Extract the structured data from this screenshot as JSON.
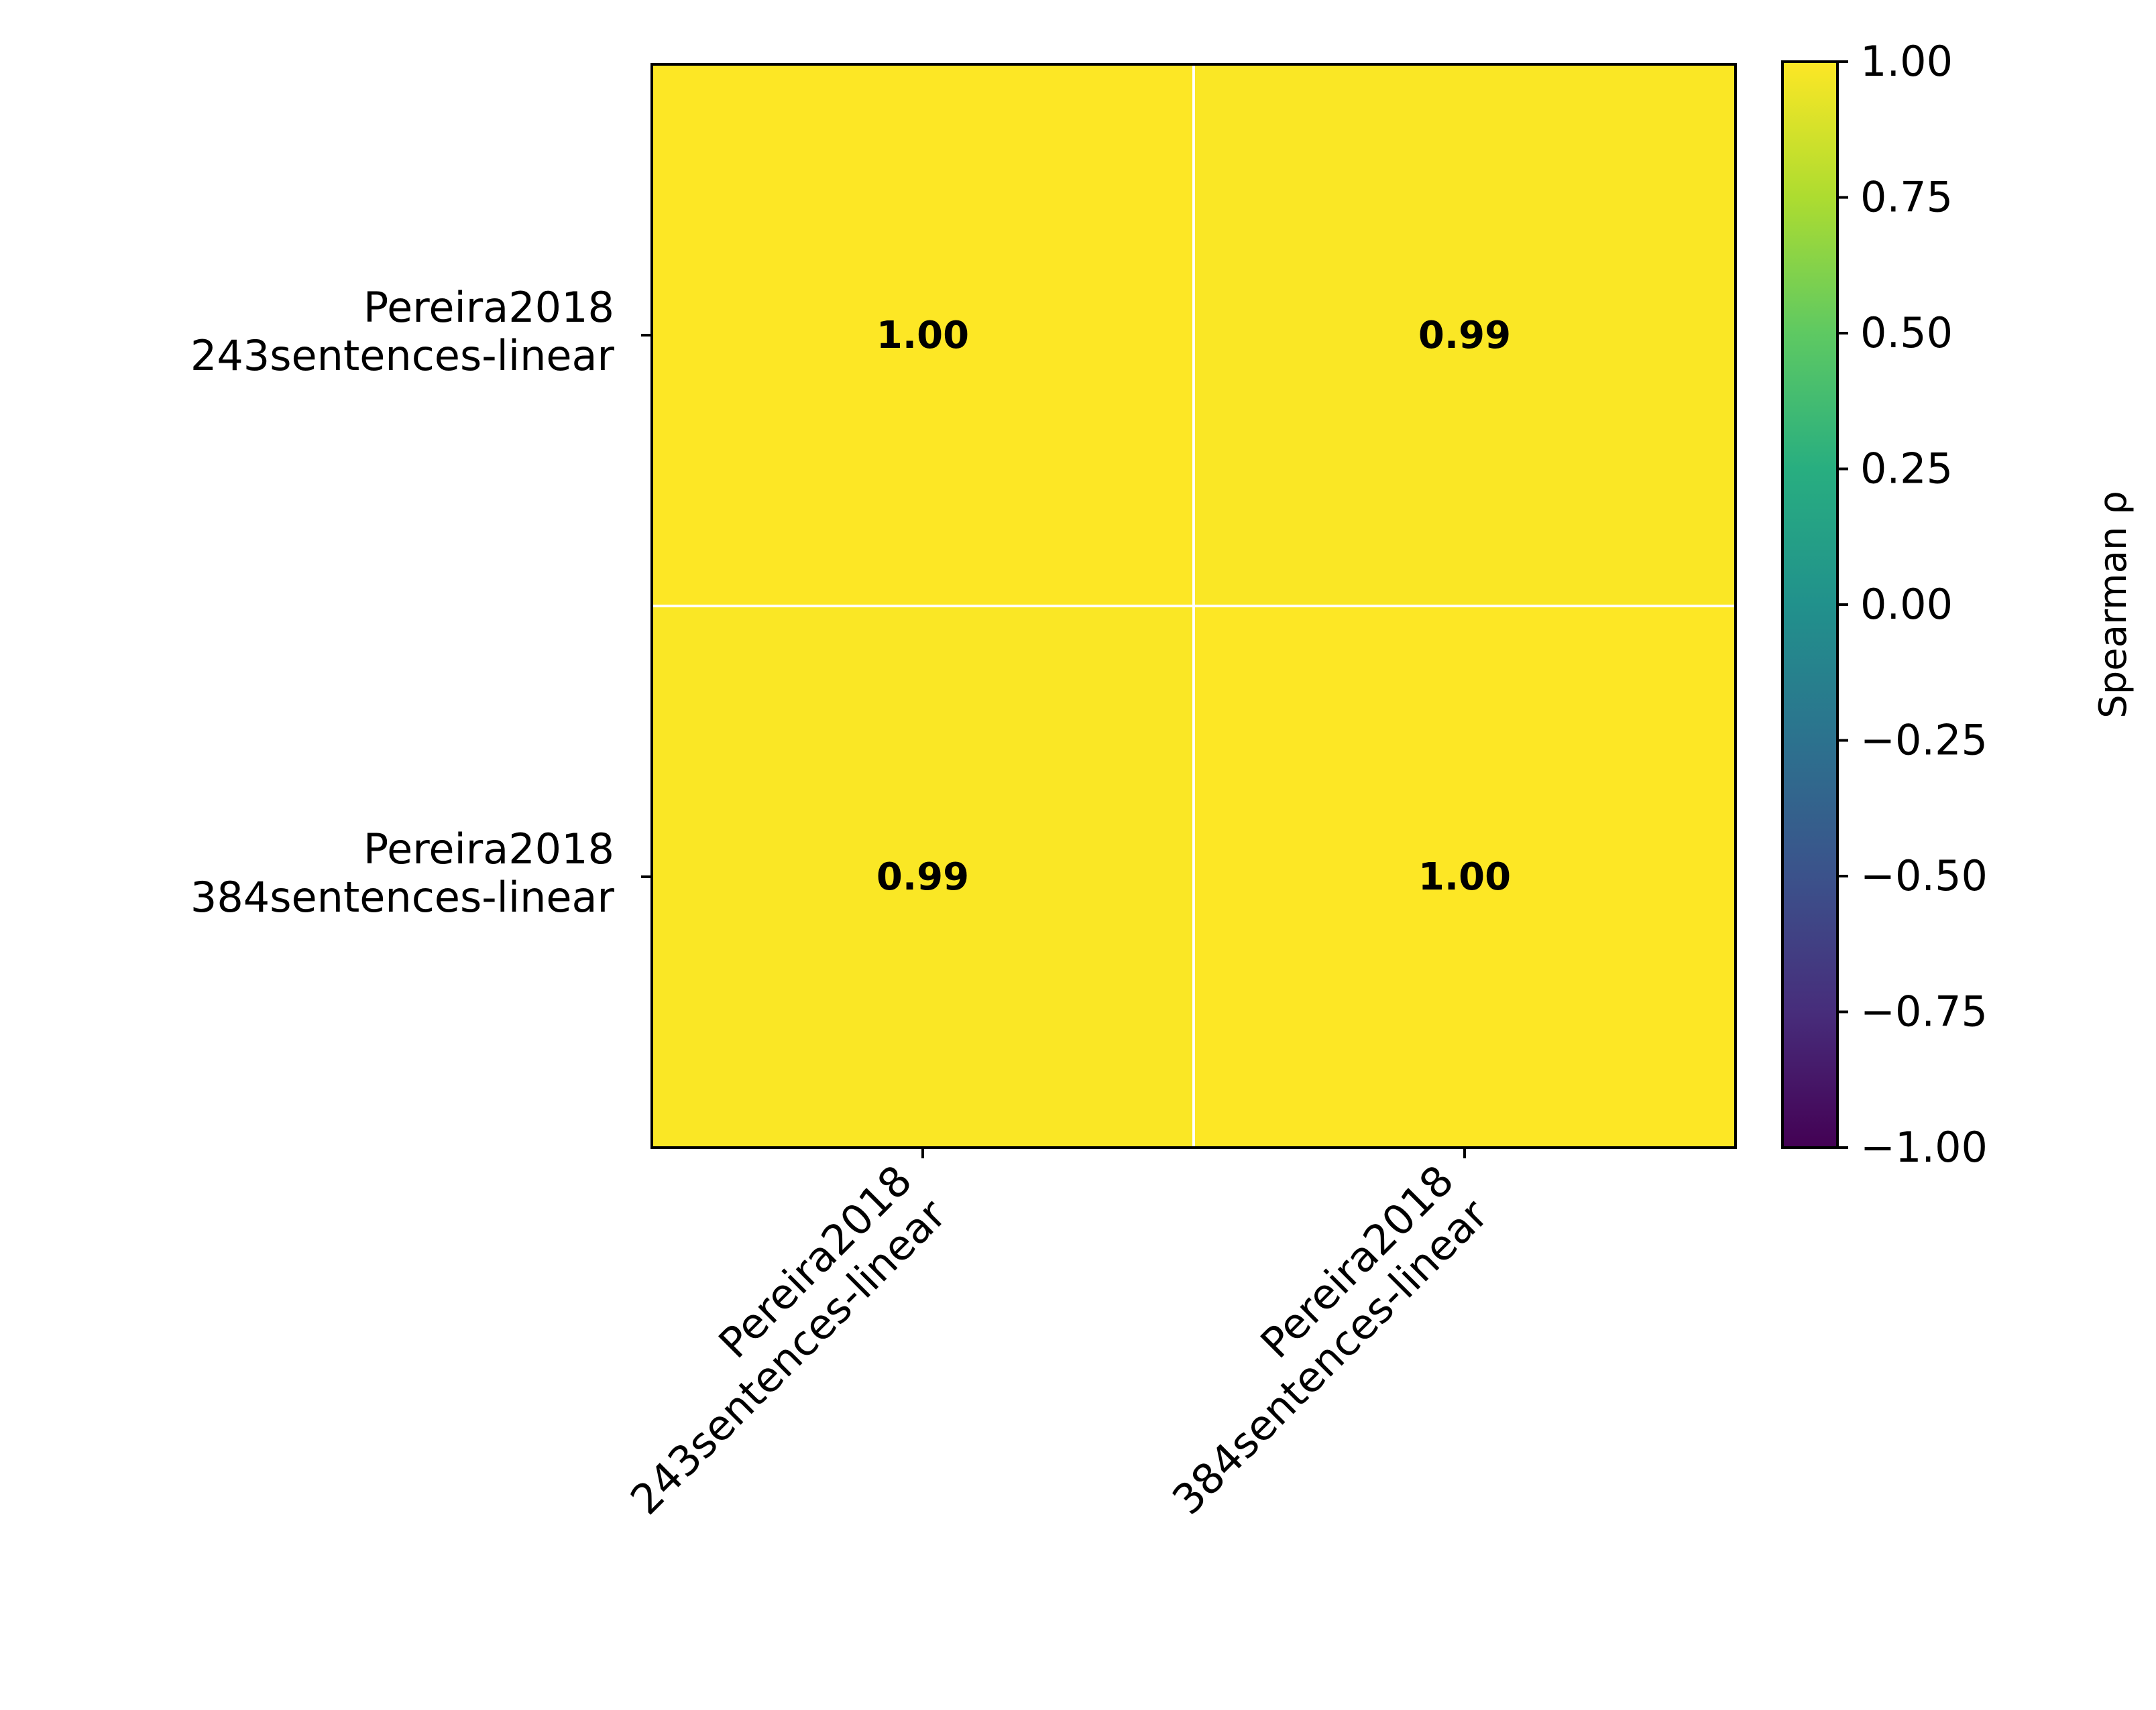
{
  "chart_data": {
    "type": "heatmap",
    "title": "",
    "xlabel": "",
    "ylabel": "",
    "x_categories": [
      [
        "Pereira2018",
        "243sentences-linear"
      ],
      [
        "Pereira2018",
        "384sentences-linear"
      ]
    ],
    "y_categories": [
      [
        "Pereira2018",
        "243sentences-linear"
      ],
      [
        "Pereira2018",
        "384sentences-linear"
      ]
    ],
    "values": [
      [
        1.0,
        0.99
      ],
      [
        0.99,
        1.0
      ]
    ],
    "cell_labels": [
      [
        "1.00",
        "0.99"
      ],
      [
        "0.99",
        "1.00"
      ]
    ],
    "colorbar": {
      "label": "Spearman ρ",
      "range": [
        -1.0,
        1.0
      ],
      "ticks": [
        1.0,
        0.75,
        0.5,
        0.25,
        0.0,
        -0.25,
        -0.5,
        -0.75,
        -1.0
      ],
      "tick_labels": [
        "1.00",
        "0.75",
        "0.50",
        "0.25",
        "0.00",
        "−0.25",
        "−0.50",
        "−0.75",
        "−1.00"
      ],
      "colormap": "viridis"
    },
    "colors": {
      "cell_high": "#f8e621",
      "grid_lines": "#ffffff",
      "frame": "#000000",
      "text": "#000000"
    }
  }
}
